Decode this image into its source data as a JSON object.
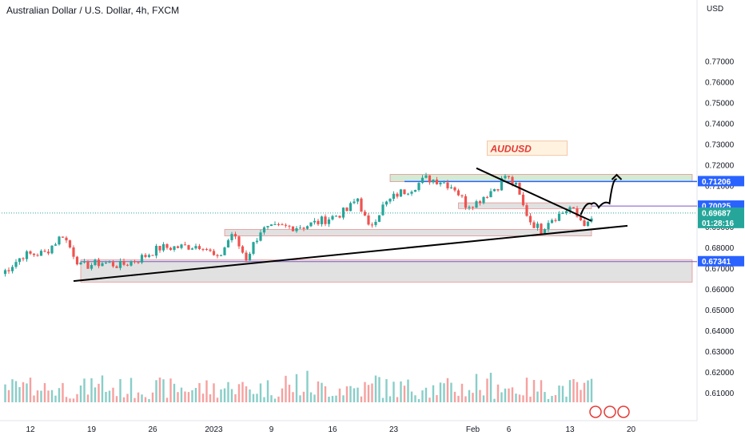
{
  "chart_data": {
    "type": "candlestick",
    "title": "Australian Dollar / U.S. Dollar, 4h, FXCM",
    "currency_label": "USD",
    "y_ticks": [
      "0.77000",
      "0.76000",
      "0.75000",
      "0.74000",
      "0.73000",
      "0.72000",
      "0.71000",
      "0.70000",
      "0.69000",
      "0.68000",
      "0.67000",
      "0.66000",
      "0.65000",
      "0.64000",
      "0.63000",
      "0.62000",
      "0.61000"
    ],
    "ylim": [
      0.6055,
      0.7835
    ],
    "x_ticks": [
      "12",
      "19",
      "26",
      "2023",
      "9",
      "16",
      "23",
      "Feb",
      "6",
      "13",
      "20"
    ],
    "price_path": [
      [
        0.6675,
        0
      ],
      [
        0.6765,
        6
      ],
      [
        0.6775,
        12
      ],
      [
        0.6865,
        17
      ],
      [
        0.671,
        22
      ],
      [
        0.673,
        28
      ],
      [
        0.6715,
        33
      ],
      [
        0.6745,
        38
      ],
      [
        0.68,
        44
      ],
      [
        0.6805,
        50
      ],
      [
        0.6815,
        56
      ],
      [
        0.674,
        60
      ],
      [
        0.687,
        64
      ],
      [
        0.675,
        68
      ],
      [
        0.6885,
        72
      ],
      [
        0.69,
        78
      ],
      [
        0.6905,
        84
      ],
      [
        0.6925,
        88
      ],
      [
        0.695,
        92
      ],
      [
        0.698,
        96
      ],
      [
        0.704,
        99
      ],
      [
        0.6895,
        102
      ],
      [
        0.7,
        106
      ],
      [
        0.706,
        110
      ],
      [
        0.709,
        114
      ],
      [
        0.7135,
        118
      ],
      [
        0.7125,
        122
      ],
      [
        0.709,
        126
      ],
      [
        0.701,
        129
      ],
      [
        0.702,
        132
      ],
      [
        0.705,
        134
      ],
      [
        0.7075,
        136
      ],
      [
        0.71,
        138
      ],
      [
        0.715,
        140
      ],
      [
        0.7095,
        143
      ],
      [
        0.7,
        145
      ],
      [
        0.693,
        147
      ],
      [
        0.6885,
        150
      ],
      [
        0.6935,
        152
      ],
      [
        0.696,
        155
      ],
      [
        0.6995,
        158
      ],
      [
        0.695,
        160
      ],
      [
        0.691,
        163
      ],
      [
        0.6935,
        164
      ]
    ],
    "price_labels": [
      {
        "value": "0.71206",
        "y": 0.71206,
        "color": "#2962ff"
      },
      {
        "value": "0.70025",
        "y": 0.70025,
        "color": "#2962ff"
      },
      {
        "value": "0.69687",
        "y": 0.69687,
        "color": "#26a69a",
        "sub": "01:28:16"
      },
      {
        "value": "0.67341",
        "y": 0.67341,
        "color": "#2962ff"
      }
    ],
    "zones": [
      {
        "x0": 22,
        "x1": 192,
        "y0": 0.6742,
        "y1": 0.6635,
        "color": "#d9d9d9"
      },
      {
        "x0": 62,
        "x1": 164,
        "y0": 0.6889,
        "y1": 0.6858,
        "color": "#d9d9d9"
      },
      {
        "x0": 127,
        "x1": 164,
        "y0": 0.7018,
        "y1": 0.699,
        "color": "#d9d9d9"
      },
      {
        "x0": 108,
        "x1": 192,
        "y0": 0.7155,
        "y1": 0.712,
        "color": "#c8e6c9"
      }
    ],
    "h_lines": [
      {
        "x0": 112,
        "x1": 192,
        "y": 0.71206,
        "color": "#2962ff",
        "width": 1.5
      },
      {
        "x0": 164,
        "x1": 192,
        "y": 0.70025,
        "color": "#7e57c2",
        "width": 1
      },
      {
        "x0": 22,
        "x1": 192,
        "y": 0.67341,
        "color": "#7e57c2",
        "width": 1
      },
      {
        "x0": 0,
        "x1": 192,
        "y": 0.69687,
        "color": "#26a69a",
        "width": 1,
        "dash": true
      }
    ],
    "trend_lines": [
      {
        "x0": 20,
        "y0": 0.664,
        "x1": 174,
        "y1": 0.6907
      },
      {
        "x0": 132,
        "y0": 0.7185,
        "x1": 164,
        "y1": 0.693
      }
    ],
    "projection": [
      [
        161,
        0.696
      ],
      [
        164,
        0.7012
      ],
      [
        166,
        0.6995
      ],
      [
        169,
        0.7015
      ],
      [
        171,
        0.713
      ]
    ],
    "annotation": {
      "text": "AUDUSD",
      "x": 135,
      "y": 0.727
    },
    "volume_max": 0.0155
  }
}
